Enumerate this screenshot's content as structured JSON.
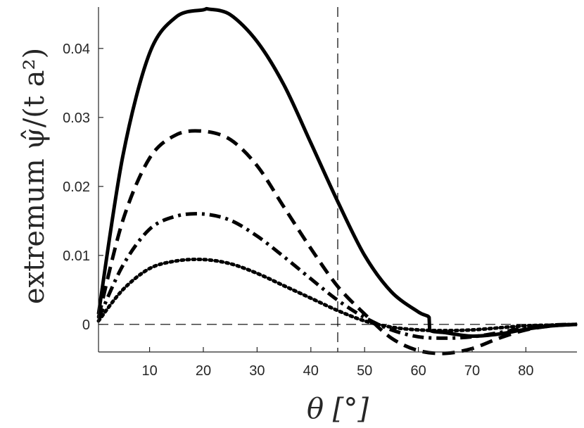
{
  "chart_data": {
    "type": "line",
    "xlabel": "θ [°]",
    "ylabel": "extremum ψ̂/(t a²)",
    "xlim": [
      0.5,
      89.5
    ],
    "ylim": [
      -0.004,
      0.046
    ],
    "xticks": [
      10,
      20,
      30,
      40,
      50,
      60,
      70,
      80
    ],
    "yticks": [
      0,
      0.01,
      0.02,
      0.03,
      0.04
    ],
    "ytick_labels": [
      "0",
      "0.01",
      "0.02",
      "0.03",
      "0.04"
    ],
    "grid": false,
    "reference_lines": {
      "vertical_x": 45,
      "horizontal_y": 0
    },
    "series": [
      {
        "style": "solid",
        "x": [
          0.5,
          5,
          10,
          15,
          20,
          21,
          25,
          30,
          35,
          40,
          45,
          50,
          55,
          60,
          62,
          62.1,
          65,
          70,
          75,
          80,
          85,
          89.5
        ],
        "y": [
          0.0015,
          0.0243,
          0.0393,
          0.0446,
          0.0456,
          0.0457,
          0.0449,
          0.041,
          0.0347,
          0.0263,
          0.0178,
          0.01,
          0.0047,
          0.0018,
          0.001,
          -0.0008,
          -0.0012,
          -0.0017,
          -0.0014,
          -0.0007,
          -0.0002,
          0.0
        ]
      },
      {
        "style": "dashed",
        "x": [
          0.5,
          5,
          10,
          15,
          20,
          25,
          30,
          35,
          40,
          45,
          50,
          55,
          60,
          65,
          70,
          75,
          80,
          85,
          89.5
        ],
        "y": [
          0.001,
          0.015,
          0.0241,
          0.0275,
          0.028,
          0.0268,
          0.023,
          0.017,
          0.011,
          0.0055,
          0.0015,
          -0.002,
          -0.0038,
          -0.0042,
          -0.0035,
          -0.002,
          -0.0008,
          -0.0002,
          0.0
        ]
      },
      {
        "style": "dash-dot",
        "x": [
          0.5,
          5,
          10,
          15,
          20,
          25,
          30,
          35,
          40,
          45,
          50,
          55,
          60,
          65,
          70,
          75,
          80,
          85,
          89.5
        ],
        "y": [
          0.0008,
          0.0085,
          0.0138,
          0.0157,
          0.016,
          0.0151,
          0.0128,
          0.0098,
          0.0066,
          0.0035,
          0.001,
          -0.0008,
          -0.0018,
          -0.002,
          -0.0018,
          -0.0012,
          -0.0005,
          -0.0001,
          0.0
        ]
      },
      {
        "style": "dotted",
        "x": [
          0.5,
          5,
          10,
          15,
          20,
          25,
          30,
          35,
          40,
          45,
          50,
          55,
          60,
          65,
          70,
          75,
          80,
          85,
          89.5
        ],
        "y": [
          0.0005,
          0.005,
          0.0081,
          0.0092,
          0.0094,
          0.0088,
          0.0074,
          0.0056,
          0.0038,
          0.002,
          0.0005,
          -0.0004,
          -0.0008,
          -0.0009,
          -0.0008,
          -0.0005,
          -0.0002,
          -0.0001,
          0.0
        ]
      }
    ]
  }
}
